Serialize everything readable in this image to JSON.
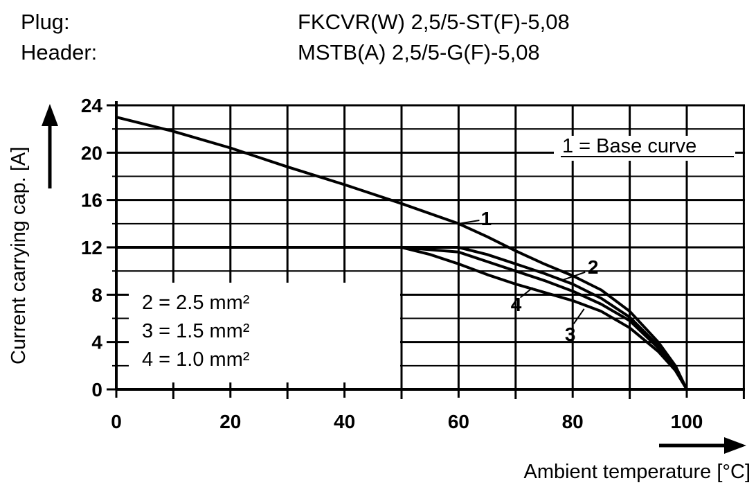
{
  "header": {
    "plug_label": "Plug:",
    "plug_value": "FKCVR(W) 2,5/5-ST(F)-5,08",
    "header_label": "Header:",
    "header_value": "MSTB(A) 2,5/5-G(F)-5,08"
  },
  "chart_data": {
    "type": "line",
    "xlabel": "Ambient temperature [°C]",
    "ylabel": "Current carrying cap. [A]",
    "xlim": [
      0,
      100
    ],
    "ylim": [
      0,
      24
    ],
    "xticks": [
      0,
      20,
      40,
      60,
      80,
      100
    ],
    "yticks": [
      0,
      4,
      8,
      12,
      16,
      20,
      24
    ],
    "x_grid_step": 10,
    "y_grid_step": 2,
    "grid": true,
    "legend": {
      "base": "1 = Base curve",
      "sections": [
        "2 = 2.5 mm²",
        "3 = 1.5 mm²",
        "4 = 1.0 mm²"
      ]
    },
    "series": [
      {
        "name": "1",
        "x": [
          0,
          10,
          20,
          30,
          40,
          50,
          60,
          65,
          70,
          75,
          80,
          85,
          90,
          95,
          98,
          100
        ],
        "y": [
          23,
          21.8,
          20.4,
          18.8,
          17.3,
          15.7,
          14.0,
          12.9,
          11.7,
          10.6,
          9.6,
          8.4,
          6.6,
          4.0,
          2.0,
          0
        ]
      },
      {
        "name": "2",
        "x": [
          0,
          10,
          20,
          30,
          40,
          50,
          60,
          65,
          70,
          75,
          80,
          85,
          90,
          95,
          98,
          100
        ],
        "y": [
          12,
          12,
          12,
          12,
          12,
          12,
          12,
          11.4,
          10.6,
          9.8,
          8.9,
          7.7,
          6.1,
          3.7,
          1.8,
          0
        ]
      },
      {
        "name": "3",
        "x": [
          0,
          10,
          20,
          30,
          40,
          50,
          60,
          65,
          70,
          75,
          80,
          85,
          90,
          95,
          98,
          100
        ],
        "y": [
          12,
          12,
          12,
          12,
          12,
          12,
          11.6,
          10.8,
          10.0,
          9.2,
          8.3,
          7.2,
          5.8,
          3.5,
          1.7,
          0
        ]
      },
      {
        "name": "4",
        "x": [
          0,
          10,
          20,
          30,
          40,
          50,
          55,
          60,
          65,
          70,
          75,
          80,
          85,
          90,
          95,
          98,
          100
        ],
        "y": [
          12,
          12,
          12,
          12,
          12,
          12,
          11.4,
          10.6,
          9.7,
          8.9,
          8.2,
          7.5,
          6.6,
          5.2,
          3.2,
          1.6,
          0
        ]
      }
    ],
    "curve_labels": [
      {
        "series": "1",
        "text": "1",
        "at_x": 60,
        "at_y": 14.0
      },
      {
        "series": "2",
        "text": "2",
        "at_x": 78,
        "at_y": 9.2
      },
      {
        "series": "3",
        "text": "3",
        "at_x": 82,
        "at_y": 6.8
      },
      {
        "series": "4",
        "text": "4",
        "at_x": 73,
        "at_y": 8.6
      }
    ]
  }
}
